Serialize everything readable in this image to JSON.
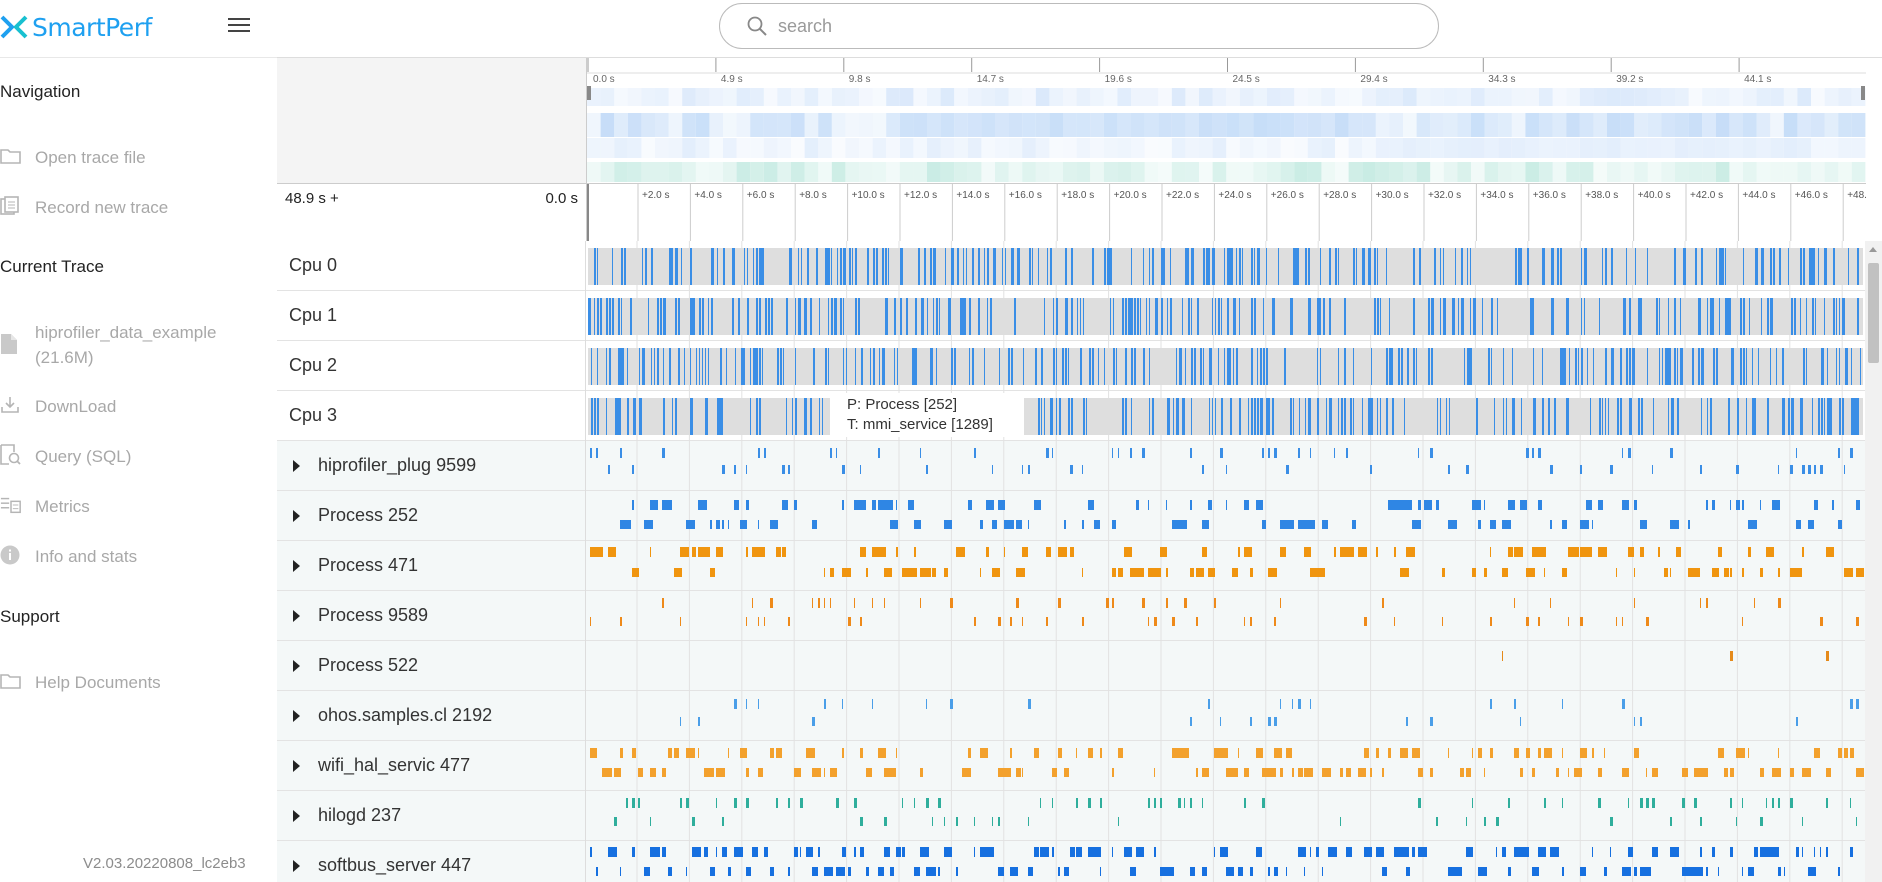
{
  "app": {
    "name": "SmartPerf",
    "version": "V2.03.20220808_lc2eb3",
    "brand_color": "#1ea0f0"
  },
  "search": {
    "placeholder": "search",
    "value": ""
  },
  "sidebar": {
    "sections": [
      {
        "title": "Navigation",
        "items": [
          {
            "label": "Open trace file",
            "icon": "folder-icon"
          },
          {
            "label": "Record new trace",
            "icon": "record-icon"
          }
        ]
      },
      {
        "title": "Current Trace",
        "items": [
          {
            "label": "hiprofiler_data_example",
            "sublabel": "(21.6M)",
            "icon": "file-icon"
          },
          {
            "label": "DownLoad",
            "icon": "download-icon"
          },
          {
            "label": "Query (SQL)",
            "icon": "query-icon"
          },
          {
            "label": "Metrics",
            "icon": "metrics-icon"
          },
          {
            "label": "Info and stats",
            "icon": "info-icon"
          }
        ]
      },
      {
        "title": "Support",
        "items": [
          {
            "label": "Help Documents",
            "icon": "folder-icon"
          }
        ]
      }
    ]
  },
  "overview": {
    "ticks": [
      "0.0 s",
      "4.9 s",
      "9.8 s",
      "14.7 s",
      "19.6 s",
      "24.5 s",
      "29.4 s",
      "34.3 s",
      "39.2 s",
      "44.1 s"
    ]
  },
  "range": {
    "start": "48.9 s +",
    "end": "0.0 s",
    "ticks": [
      "+2.0 s",
      "+4.0 s",
      "+6.0 s",
      "+8.0 s",
      "+10.0 s",
      "+12.0 s",
      "+14.0 s",
      "+16.0 s",
      "+18.0 s",
      "+20.0 s",
      "+22.0 s",
      "+24.0 s",
      "+26.0 s",
      "+28.0 s",
      "+30.0 s",
      "+32.0 s",
      "+34.0 s",
      "+36.0 s",
      "+38.0 s",
      "+40.0 s",
      "+42.0 s",
      "+44.0 s",
      "+46.0 s",
      "+48."
    ]
  },
  "tracks": [
    {
      "name": "Cpu 0",
      "kind": "cpu",
      "color": "#3a8ee6"
    },
    {
      "name": "Cpu 1",
      "kind": "cpu",
      "color": "#3a8ee6"
    },
    {
      "name": "Cpu 2",
      "kind": "cpu",
      "color": "#3a8ee6"
    },
    {
      "name": "Cpu 3",
      "kind": "cpu",
      "color": "#3a8ee6"
    },
    {
      "name": "hiprofiler_plug 9599",
      "kind": "proc",
      "color": "#3a8ee6"
    },
    {
      "name": "Process 252",
      "kind": "proc",
      "color": "#2f86e4"
    },
    {
      "name": "Process 471",
      "kind": "proc",
      "color": "#f0950f"
    },
    {
      "name": "Process 9589",
      "kind": "proc",
      "color": "#ee8a1a"
    },
    {
      "name": "Process 522",
      "kind": "proc",
      "color": "#e58a1a"
    },
    {
      "name": "ohos.samples.cl 2192",
      "kind": "proc",
      "color": "#4a9ee8"
    },
    {
      "name": "wifi_hal_servic 477",
      "kind": "proc",
      "color": "#f3a12d"
    },
    {
      "name": "hilogd 237",
      "kind": "proc",
      "color": "#2fae9c"
    },
    {
      "name": "softbus_server 447",
      "kind": "proc",
      "color": "#1670e0"
    }
  ],
  "tooltip": {
    "process": "P:  Process [252]",
    "thread": "T:  mmi_service [1289]"
  }
}
